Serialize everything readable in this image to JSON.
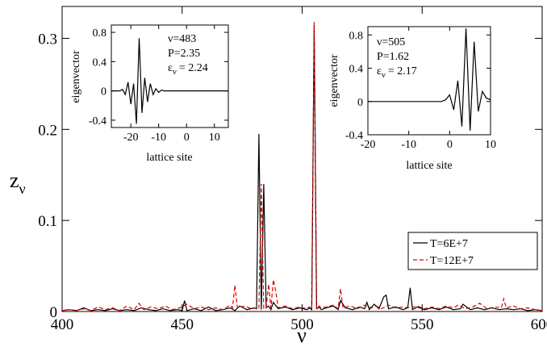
{
  "chart_data": [
    {
      "id": "main",
      "type": "line",
      "xlabel": "ν",
      "ylabel_main": "z",
      "ylabel_sub": "ν",
      "xlim": [
        400,
        600
      ],
      "ylim": [
        0,
        0.335
      ],
      "x_ticks": [
        400,
        450,
        500,
        550,
        600
      ],
      "y_ticks": [
        0,
        0.1,
        0.2,
        0.3
      ],
      "y_tick_labels": [
        "0",
        "0.1",
        "0.2",
        "0.3"
      ],
      "legend_position": "bottom-right",
      "series": [
        {
          "name": "T=6E+7",
          "color": "#000000",
          "dash": "solid",
          "x": [
            400,
            403,
            406,
            409,
            412,
            415,
            418,
            421,
            424,
            427,
            430,
            433,
            436,
            439,
            442,
            445,
            448,
            450,
            451,
            452,
            455,
            458,
            461,
            464,
            467,
            470,
            472,
            474,
            477,
            480,
            481,
            482,
            483,
            484,
            485,
            486,
            487,
            488,
            490,
            493,
            496,
            499,
            502,
            503,
            504,
            505,
            506,
            507,
            508,
            510,
            513,
            515,
            516,
            518,
            521,
            524,
            526,
            527,
            528,
            530,
            532,
            534,
            535,
            536,
            539,
            542,
            544,
            545,
            546,
            548,
            551,
            554,
            557,
            560,
            563,
            566,
            567,
            570,
            573,
            576,
            579,
            582,
            585,
            588,
            591,
            594,
            597,
            600
          ],
          "y": [
            0.001,
            0.002,
            0.001,
            0.004,
            0.001,
            0.002,
            0.001,
            0.003,
            0.001,
            0.002,
            0.001,
            0.004,
            0.002,
            0.001,
            0.003,
            0.001,
            0.002,
            0.001,
            0.012,
            0.001,
            0.003,
            0.001,
            0.005,
            0.001,
            0.002,
            0.004,
            0.001,
            0.006,
            0.002,
            0.004,
            0.003,
            0.195,
            0.002,
            0.14,
            0.004,
            0.006,
            0.002,
            0.01,
            0.003,
            0.005,
            0.002,
            0.004,
            0.002,
            0.004,
            0.002,
            0.315,
            0.003,
            0.005,
            0.002,
            0.004,
            0.006,
            0.002,
            0.012,
            0.004,
            0.002,
            0.005,
            0.003,
            0.01,
            0.002,
            0.008,
            0.003,
            0.016,
            0.018,
            0.003,
            0.005,
            0.002,
            0.004,
            0.026,
            0.002,
            0.005,
            0.002,
            0.004,
            0.002,
            0.005,
            0.002,
            0.003,
            0.008,
            0.002,
            0.004,
            0.002,
            0.004,
            0.002,
            0.003,
            0.002,
            0.003,
            0.001,
            0.002,
            0.001
          ]
        },
        {
          "name": "T=12E+7",
          "color": "#e00000",
          "dash": "dashed",
          "x": [
            400,
            403,
            406,
            409,
            412,
            415,
            418,
            421,
            424,
            427,
            430,
            432,
            434,
            437,
            440,
            443,
            446,
            449,
            452,
            455,
            458,
            461,
            464,
            467,
            470,
            471,
            472,
            473,
            476,
            479,
            481,
            482,
            483,
            484,
            485,
            486,
            487,
            488,
            489,
            490,
            493,
            496,
            499,
            502,
            503,
            504,
            505,
            506,
            507,
            508,
            510,
            513,
            515,
            516,
            517,
            520,
            523,
            526,
            529,
            531,
            533,
            536,
            539,
            542,
            545,
            548,
            551,
            554,
            557,
            560,
            563,
            565,
            568,
            571,
            574,
            577,
            580,
            583,
            584,
            585,
            588,
            591,
            594,
            597,
            600
          ],
          "y": [
            0.001,
            0.002,
            0.001,
            0.003,
            0.001,
            0.005,
            0.002,
            0.004,
            0.001,
            0.006,
            0.002,
            0.009,
            0.002,
            0.005,
            0.003,
            0.006,
            0.002,
            0.004,
            0.008,
            0.003,
            0.005,
            0.002,
            0.004,
            0.002,
            0.007,
            0.004,
            0.029,
            0.004,
            0.006,
            0.003,
            0.004,
            0.003,
            0.14,
            0.003,
            0.004,
            0.03,
            0.004,
            0.035,
            0.022,
            0.004,
            0.006,
            0.003,
            0.005,
            0.003,
            0.005,
            0.003,
            0.318,
            0.003,
            0.006,
            0.004,
            0.005,
            0.007,
            0.003,
            0.025,
            0.004,
            0.006,
            0.003,
            0.007,
            0.004,
            0.006,
            0.003,
            0.007,
            0.004,
            0.005,
            0.004,
            0.006,
            0.003,
            0.005,
            0.003,
            0.006,
            0.004,
            0.007,
            0.003,
            0.005,
            0.009,
            0.003,
            0.005,
            0.004,
            0.014,
            0.004,
            0.006,
            0.003,
            0.004,
            0.002,
            0.001
          ]
        }
      ]
    },
    {
      "id": "inset_left",
      "type": "line",
      "xlabel": "lattice site",
      "ylabel": "eigenvector",
      "xlim": [
        -27,
        15
      ],
      "ylim": [
        -0.5,
        0.9
      ],
      "x_ticks": [
        -20,
        -10,
        0,
        10
      ],
      "y_ticks": [
        -0.4,
        0,
        0.4,
        0.8
      ],
      "y_tick_labels": [
        "-0.4",
        "0",
        "0.4",
        "0.8"
      ],
      "annotations": [
        "ν=483",
        "P=2.35",
        "ε",
        "ν",
        "= 2.24"
      ],
      "series": [
        {
          "color": "#000000",
          "x": [
            -27,
            -24,
            -23,
            -22,
            -21,
            -20,
            -19,
            -18,
            -17,
            -16,
            -15,
            -14,
            -13,
            -12,
            -11,
            -10,
            -9,
            -8,
            -5,
            0,
            15
          ],
          "y": [
            0,
            0.0,
            0.02,
            -0.05,
            0.12,
            -0.18,
            0.1,
            -0.45,
            0.72,
            -0.3,
            0.18,
            -0.15,
            0.1,
            -0.05,
            0.03,
            -0.02,
            0.01,
            0,
            0,
            0,
            0
          ]
        }
      ]
    },
    {
      "id": "inset_right",
      "type": "line",
      "xlabel": "lattice site",
      "ylabel": "eigenvector",
      "xlim": [
        -20,
        10
      ],
      "ylim": [
        -0.4,
        0.9
      ],
      "x_ticks": [
        -20,
        -10,
        0,
        10
      ],
      "y_ticks": [
        -0.4,
        0,
        0.4,
        0.8
      ],
      "y_tick_labels": [
        "-0.4",
        "0",
        "0.4",
        "0.8"
      ],
      "annotations": [
        "ν=505",
        "P=1.62",
        "ε",
        "ν",
        "= 2.17"
      ],
      "series": [
        {
          "color": "#000000",
          "x": [
            -20,
            -5,
            -2,
            -1,
            0,
            1,
            2,
            3,
            4,
            5,
            6,
            7,
            8,
            9,
            10
          ],
          "y": [
            0,
            0,
            0.0,
            0.02,
            0.08,
            -0.1,
            0.25,
            -0.3,
            0.88,
            -0.35,
            0.72,
            -0.12,
            0.12,
            0.04,
            0.02
          ]
        }
      ]
    }
  ]
}
